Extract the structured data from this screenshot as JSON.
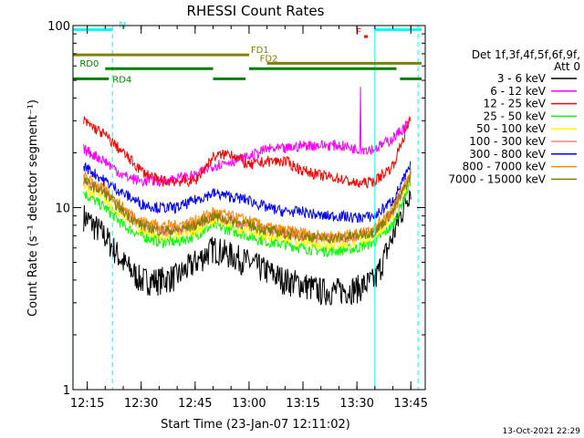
{
  "chart_data": {
    "type": "line",
    "title": "RHESSI Count Rates",
    "xlabel": "Start Time (23-Jan-07 12:11:02)",
    "ylabel": "Count Rate (s⁻¹ detector segment⁻¹)",
    "y_scale": "log",
    "ylim": [
      1,
      100
    ],
    "xlim": [
      "12:11:02",
      "13:49:00"
    ],
    "x_ticks": [
      "12:15",
      "12:30",
      "12:45",
      "13:00",
      "13:15",
      "13:30",
      "13:45"
    ],
    "y_ticks": [
      "1",
      "10",
      "100"
    ],
    "grid": false,
    "legend_position": "right",
    "legend_header": [
      "Det 1f,3f,4f,5f,6f,9f,",
      "Att 0"
    ],
    "footer_date": "13-Oct-2021 22:29",
    "x": [
      "12:14",
      "12:20",
      "12:25",
      "12:30",
      "12:35",
      "12:40",
      "12:45",
      "12:50",
      "12:55",
      "13:00",
      "13:05",
      "13:10",
      "13:15",
      "13:20",
      "13:25",
      "13:30",
      "13:35",
      "13:40",
      "13:45"
    ],
    "series": [
      {
        "name": "3 - 6 keV",
        "color": "#000000",
        "values": [
          9,
          7,
          5,
          4,
          4,
          4.2,
          5,
          6,
          5.5,
          5,
          4.5,
          4,
          3.8,
          3.5,
          3.5,
          3.6,
          4,
          7,
          13
        ]
      },
      {
        "name": "6 - 12 keV",
        "color": "#ff00ff",
        "values": [
          21,
          18,
          15,
          14,
          14,
          14.5,
          15,
          17,
          18,
          19,
          21,
          21,
          22,
          22,
          22,
          21,
          21,
          24,
          30
        ]
      },
      {
        "name": "12 - 25 keV",
        "color": "#ff0000",
        "values": [
          30,
          25,
          20,
          16,
          14,
          14,
          14,
          19,
          20,
          17,
          18,
          18,
          16,
          15,
          14.5,
          13.5,
          14,
          17,
          31
        ]
      },
      {
        "name": "25 - 50 keV",
        "color": "#00ff00",
        "values": [
          12,
          10,
          8,
          7,
          6.5,
          6.5,
          7,
          8,
          7.5,
          7,
          6.5,
          6.3,
          6,
          5.8,
          5.8,
          6,
          6.5,
          8,
          14
        ]
      },
      {
        "name": "50 - 100 keV",
        "color": "#ffff00",
        "values": [
          13,
          11,
          9,
          7.5,
          7,
          7,
          7.5,
          8.5,
          8,
          7.5,
          7,
          6.8,
          6.5,
          6.3,
          6.3,
          6.5,
          7,
          9,
          15
        ]
      },
      {
        "name": "100 - 300 keV",
        "color": "#ff8080",
        "values": [
          14,
          12,
          9.5,
          8,
          7.5,
          7.5,
          8,
          9,
          8.5,
          8,
          7.5,
          7.2,
          7,
          6.8,
          6.8,
          7,
          7.5,
          9.5,
          15
        ]
      },
      {
        "name": "300 - 800 keV",
        "color": "#0000ff",
        "values": [
          17,
          14,
          12,
          10.5,
          10,
          10,
          11,
          12,
          11.5,
          11,
          10,
          9.5,
          9.5,
          9,
          9,
          8.8,
          9,
          11,
          17
        ]
      },
      {
        "name": "800 - 7000 keV",
        "color": "#ff8800",
        "values": [
          15,
          12.5,
          10,
          8.5,
          8,
          8,
          8.5,
          9.5,
          9,
          8.5,
          7.8,
          7.5,
          7.3,
          7,
          7,
          7.2,
          7.8,
          10,
          16
        ]
      },
      {
        "name": "7000 - 15000 keV",
        "color": "#808000",
        "values": [
          14,
          12,
          9.5,
          8,
          7.5,
          7.5,
          8,
          9,
          8.5,
          8,
          7.5,
          7.2,
          7,
          6.8,
          6.8,
          7,
          7.4,
          9.5,
          15
        ]
      }
    ],
    "vertical_lines": [
      {
        "time": "12:11",
        "style": "solid",
        "color": "#00ffff"
      },
      {
        "time": "12:22",
        "style": "dashed",
        "color": "#00ffff"
      },
      {
        "time": "13:35",
        "style": "solid",
        "color": "#00ffff"
      },
      {
        "time": "13:47",
        "style": "dashed",
        "color": "#00ffff"
      }
    ],
    "flag_bars": [
      {
        "label": "N",
        "color": "#00ffff",
        "segments": [
          [
            "12:11",
            "12:22"
          ],
          [
            "13:35",
            "13:48"
          ]
        ],
        "level": 95
      },
      {
        "label": "FD1",
        "color": "#808000",
        "segments": [
          [
            "12:11",
            "13:00"
          ]
        ],
        "level": 69
      },
      {
        "label": "FD2",
        "color": "#808000",
        "segments": [
          [
            "13:05",
            "13:48"
          ]
        ],
        "level": 62
      },
      {
        "label": "RD0",
        "color": "#008000",
        "segments": [
          [
            "12:20",
            "12:50"
          ],
          [
            "13:00",
            "13:41"
          ]
        ],
        "level": 58
      },
      {
        "label": "RD4",
        "color": "#008000",
        "segments": [
          [
            "12:11",
            "12:21"
          ],
          [
            "12:50",
            "12:59"
          ],
          [
            "13:42",
            "13:48"
          ]
        ],
        "level": 51
      },
      {
        "label": "F",
        "color": "#ff0000",
        "segments": [
          [
            "13:32",
            "13:33"
          ]
        ],
        "level": 87
      }
    ],
    "spike": {
      "series": "6 - 12 keV",
      "time": "13:31",
      "value": 46
    }
  }
}
